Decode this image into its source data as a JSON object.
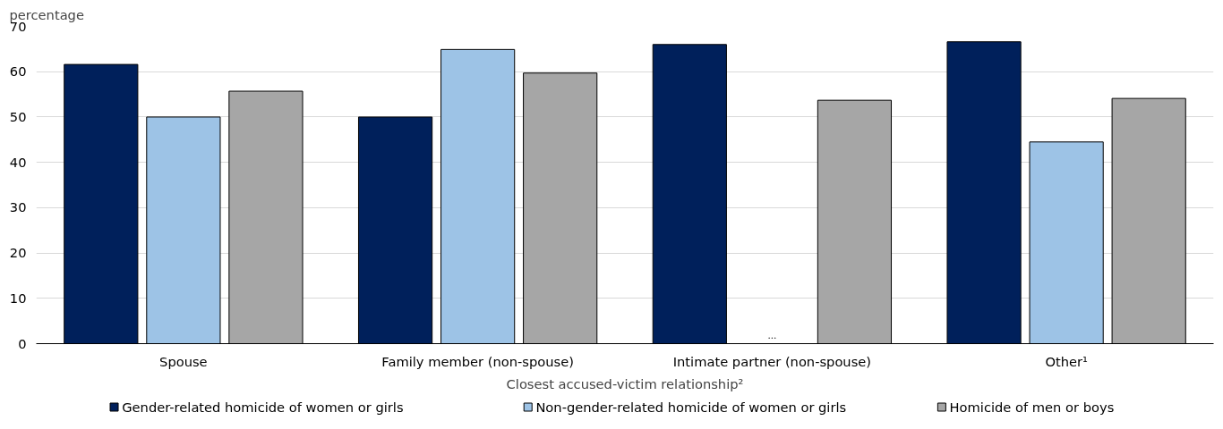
{
  "chart_data": {
    "type": "bar",
    "ylabel": "percentage",
    "xlabel": "Closest accused-victim relationship²",
    "categories": [
      "Spouse",
      "Family member (non-spouse)",
      "Intimate partner (non-spouse)",
      "Other¹"
    ],
    "series": [
      {
        "name": "Gender-related homicide of women or girls",
        "color": "#00205b",
        "values": [
          61.6,
          50.0,
          66.0,
          66.6
        ]
      },
      {
        "name": "Non-gender-related homicide of women or girls",
        "color": "#9dc3e6",
        "values": [
          50.0,
          64.9,
          null,
          44.5
        ],
        "value_labels": [
          null,
          null,
          "...",
          null
        ]
      },
      {
        "name": "Homicide of men or boys",
        "color": "#a6a6a6",
        "values": [
          55.7,
          59.7,
          53.7,
          54.1
        ]
      }
    ],
    "ylim": [
      0,
      70
    ],
    "yticks": [
      0,
      10,
      20,
      30,
      40,
      50,
      60,
      70
    ],
    "grid": "y",
    "legend": "bottom"
  }
}
